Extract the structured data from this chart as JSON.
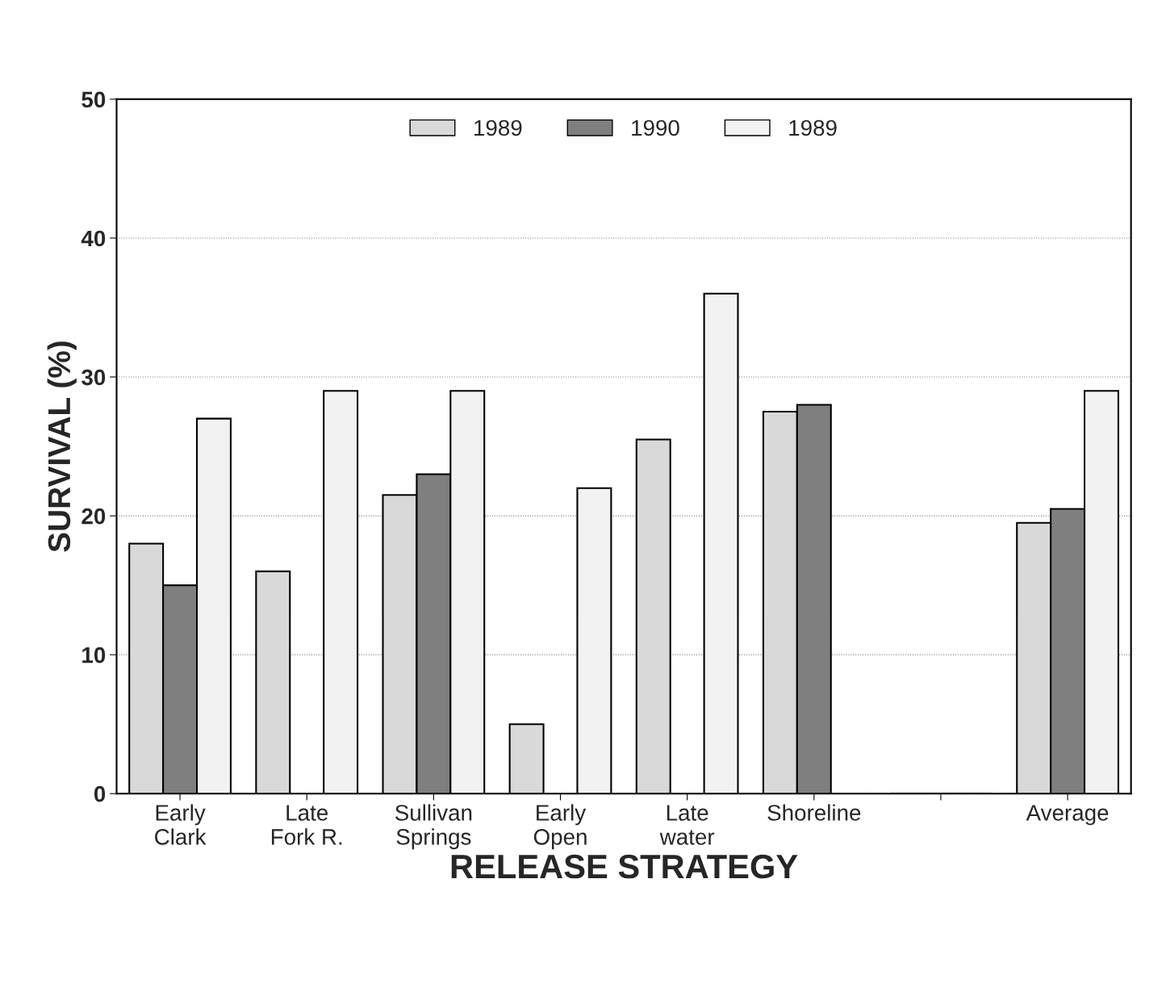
{
  "chart_data": {
    "type": "bar",
    "xlabel": "RELEASE STRATEGY",
    "ylabel": "SURVIVAL (%)",
    "categories": [
      "Early\nClark",
      "Late\nFork R.",
      "Sullivan\nSprings",
      "Early\nOpen",
      "Late\nwater",
      "Shoreline",
      null,
      "Average"
    ],
    "series": [
      {
        "name": "1989",
        "color": "#d9d9d9",
        "values": [
          18,
          16,
          21.5,
          5,
          25.5,
          27.5,
          0,
          19.5
        ]
      },
      {
        "name": "1990",
        "color": "#7f7f7f",
        "values": [
          15,
          null,
          23,
          null,
          null,
          28,
          0,
          20.5
        ]
      },
      {
        "name": "1989",
        "color": "#f2f2f2",
        "values": [
          27,
          29,
          29,
          22,
          36,
          null,
          0,
          29
        ]
      }
    ],
    "ylim": [
      0,
      50
    ],
    "yticks": [
      0,
      10,
      20,
      30,
      40,
      50
    ],
    "grid": "y",
    "legend": "top"
  }
}
